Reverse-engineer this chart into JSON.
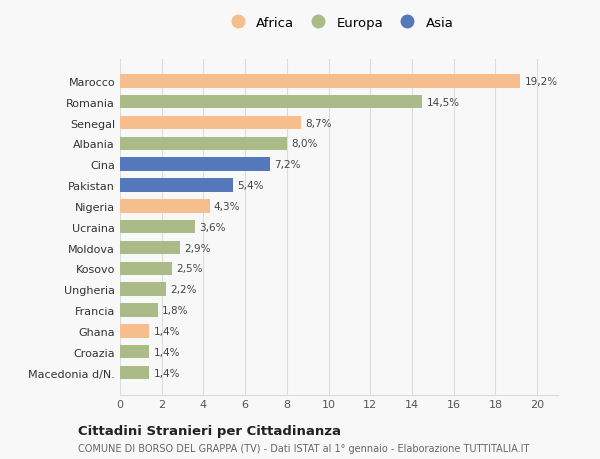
{
  "countries": [
    "Marocco",
    "Romania",
    "Senegal",
    "Albania",
    "Cina",
    "Pakistan",
    "Nigeria",
    "Ucraina",
    "Moldova",
    "Kosovo",
    "Ungheria",
    "Francia",
    "Ghana",
    "Croazia",
    "Macedonia d/N."
  ],
  "values": [
    19.2,
    14.5,
    8.7,
    8.0,
    7.2,
    5.4,
    4.3,
    3.6,
    2.9,
    2.5,
    2.2,
    1.8,
    1.4,
    1.4,
    1.4
  ],
  "labels": [
    "19,2%",
    "14,5%",
    "8,7%",
    "8,0%",
    "7,2%",
    "5,4%",
    "4,3%",
    "3,6%",
    "2,9%",
    "2,5%",
    "2,2%",
    "1,8%",
    "1,4%",
    "1,4%",
    "1,4%"
  ],
  "continents": [
    "Africa",
    "Europa",
    "Africa",
    "Europa",
    "Asia",
    "Asia",
    "Africa",
    "Europa",
    "Europa",
    "Europa",
    "Europa",
    "Europa",
    "Africa",
    "Europa",
    "Europa"
  ],
  "colors": {
    "Africa": "#F5BE8C",
    "Europa": "#AABB88",
    "Asia": "#5577BB"
  },
  "color_africa": "#F5BE8C",
  "color_europa": "#AABB88",
  "color_asia": "#5577BB",
  "xlim": [
    0,
    21
  ],
  "xticks": [
    0,
    2,
    4,
    6,
    8,
    10,
    12,
    14,
    16,
    18,
    20
  ],
  "title1": "Cittadini Stranieri per Cittadinanza",
  "title2": "COMUNE DI BORSO DEL GRAPPA (TV) - Dati ISTAT al 1° gennaio - Elaborazione TUTTITALIA.IT",
  "background_color": "#f8f8f8",
  "grid_color": "#dddddd"
}
